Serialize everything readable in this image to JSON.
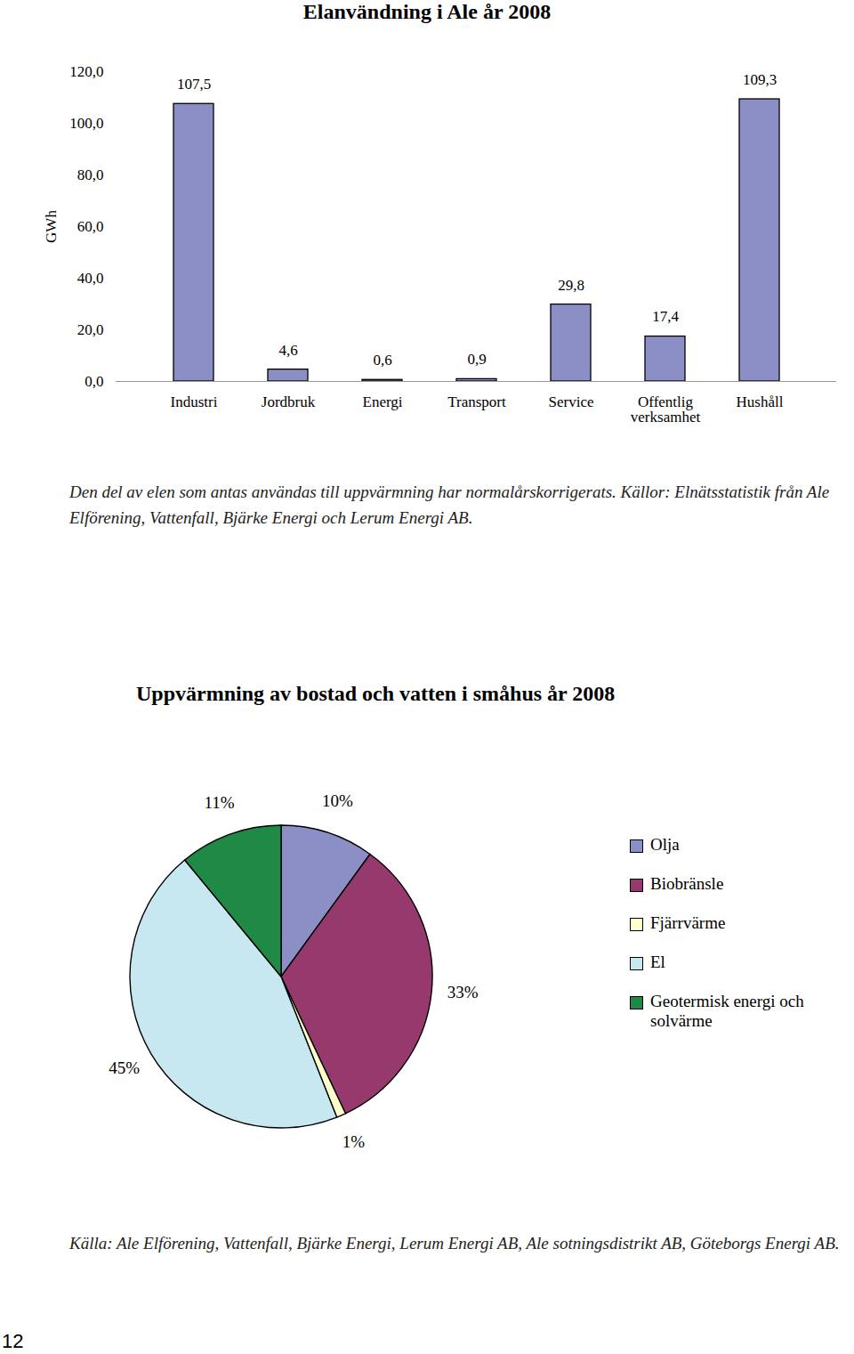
{
  "chart_data": [
    {
      "type": "bar",
      "title": "Elanvändning i Ale år 2008",
      "y_label": "GWh",
      "categories": [
        "Industri",
        "Jordbruk",
        "Energi",
        "Transport",
        "Service",
        "Offentlig verksamhet",
        "Hushåll"
      ],
      "values": [
        107.5,
        4.6,
        0.6,
        0.9,
        29.8,
        17.4,
        109.3
      ],
      "value_labels": [
        "107,5",
        "4,6",
        "0,6",
        "0,9",
        "29,8",
        "17,4",
        "109,3"
      ],
      "data_labels": true,
      "color": "#8c8fc6",
      "ylim": [
        0,
        120
      ],
      "yticks": [
        {
          "value": 0,
          "label": "0,0"
        },
        {
          "value": 20,
          "label": "20,0"
        },
        {
          "value": 40,
          "label": "40,0"
        },
        {
          "value": 60,
          "label": "60,0"
        },
        {
          "value": 80,
          "label": "80,0"
        },
        {
          "value": 100,
          "label": "100,0"
        },
        {
          "value": 120,
          "label": "120,0"
        }
      ],
      "grid": false,
      "caption": "Den del av elen som antas användas till uppvärmning har normalårskorrigerats. Källor: Elnätsstatistik från Ale Elförening, Vattenfall, Bjärke Energi och Lerum Energi AB."
    },
    {
      "type": "pie",
      "title": "Uppvärmning av bostad och vatten i småhus år 2008",
      "categories": [
        "Olja",
        "Biobränsle",
        "Fjärrvärme",
        "El",
        "Geotermisk energi och solvärme"
      ],
      "values": [
        10,
        33,
        1,
        45,
        11
      ],
      "value_labels": [
        "10%",
        "33%",
        "1%",
        "45%",
        "11%"
      ],
      "data_labels": true,
      "colors": [
        "#8b8fc6",
        "#96396c",
        "#ffffcc",
        "#c7e8f0",
        "#1f8a45"
      ],
      "legend": "right",
      "caption": "Källa: Ale Elförening, Vattenfall, Bjärke Energi, Lerum Energi AB, Ale sotningsdistrikt AB, Göteborgs Energi AB."
    }
  ],
  "page": "12"
}
